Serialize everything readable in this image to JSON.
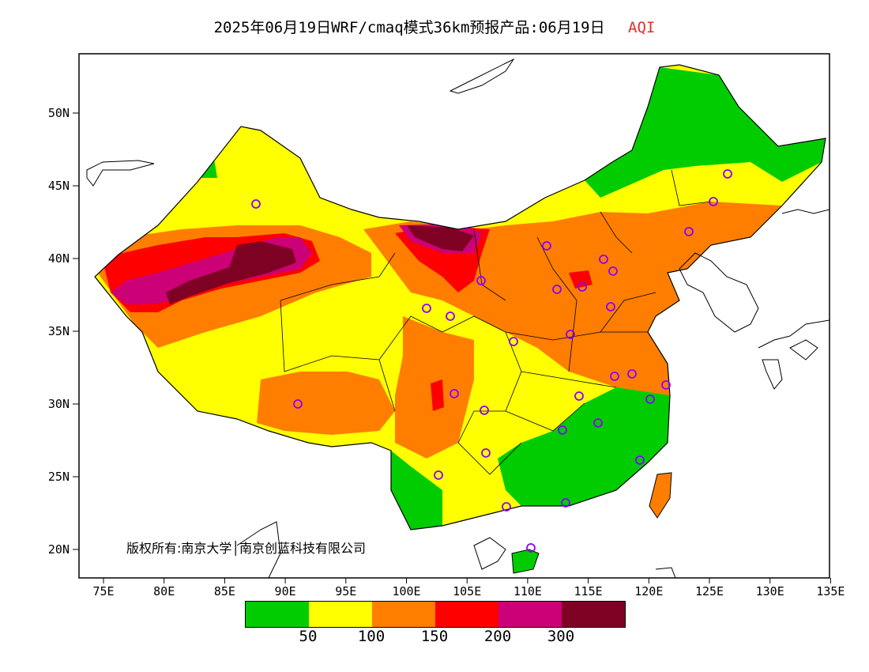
{
  "title": {
    "main": "2025年06月19日WRF/cmaq模式36km预报产品:06月19日",
    "variable": "AQI"
  },
  "axes": {
    "lat_labels": [
      "50N",
      "45N",
      "40N",
      "35N",
      "30N",
      "25N",
      "20N"
    ],
    "lon_labels": [
      "75E",
      "80E",
      "85E",
      "90E",
      "95E",
      "100E",
      "105E",
      "110E",
      "115E",
      "120E",
      "125E",
      "130E",
      "135E"
    ]
  },
  "copyright": "版权所有:南京大学│南京创蓝科技有限公司",
  "legend": {
    "colors": [
      "#00cc00",
      "#ffff00",
      "#ff7e00",
      "#ff0000",
      "#cc0077",
      "#7e0023"
    ],
    "labels": [
      "50",
      "100",
      "150",
      "200",
      "300"
    ]
  },
  "city_marker_color": "#8b00ff",
  "colors": {
    "good": "#00cc00",
    "moderate": "#ffff00",
    "sensitive": "#ff7e00",
    "unhealthy": "#ff0000",
    "very_unhealthy": "#cc0077",
    "hazardous": "#7e0023"
  }
}
